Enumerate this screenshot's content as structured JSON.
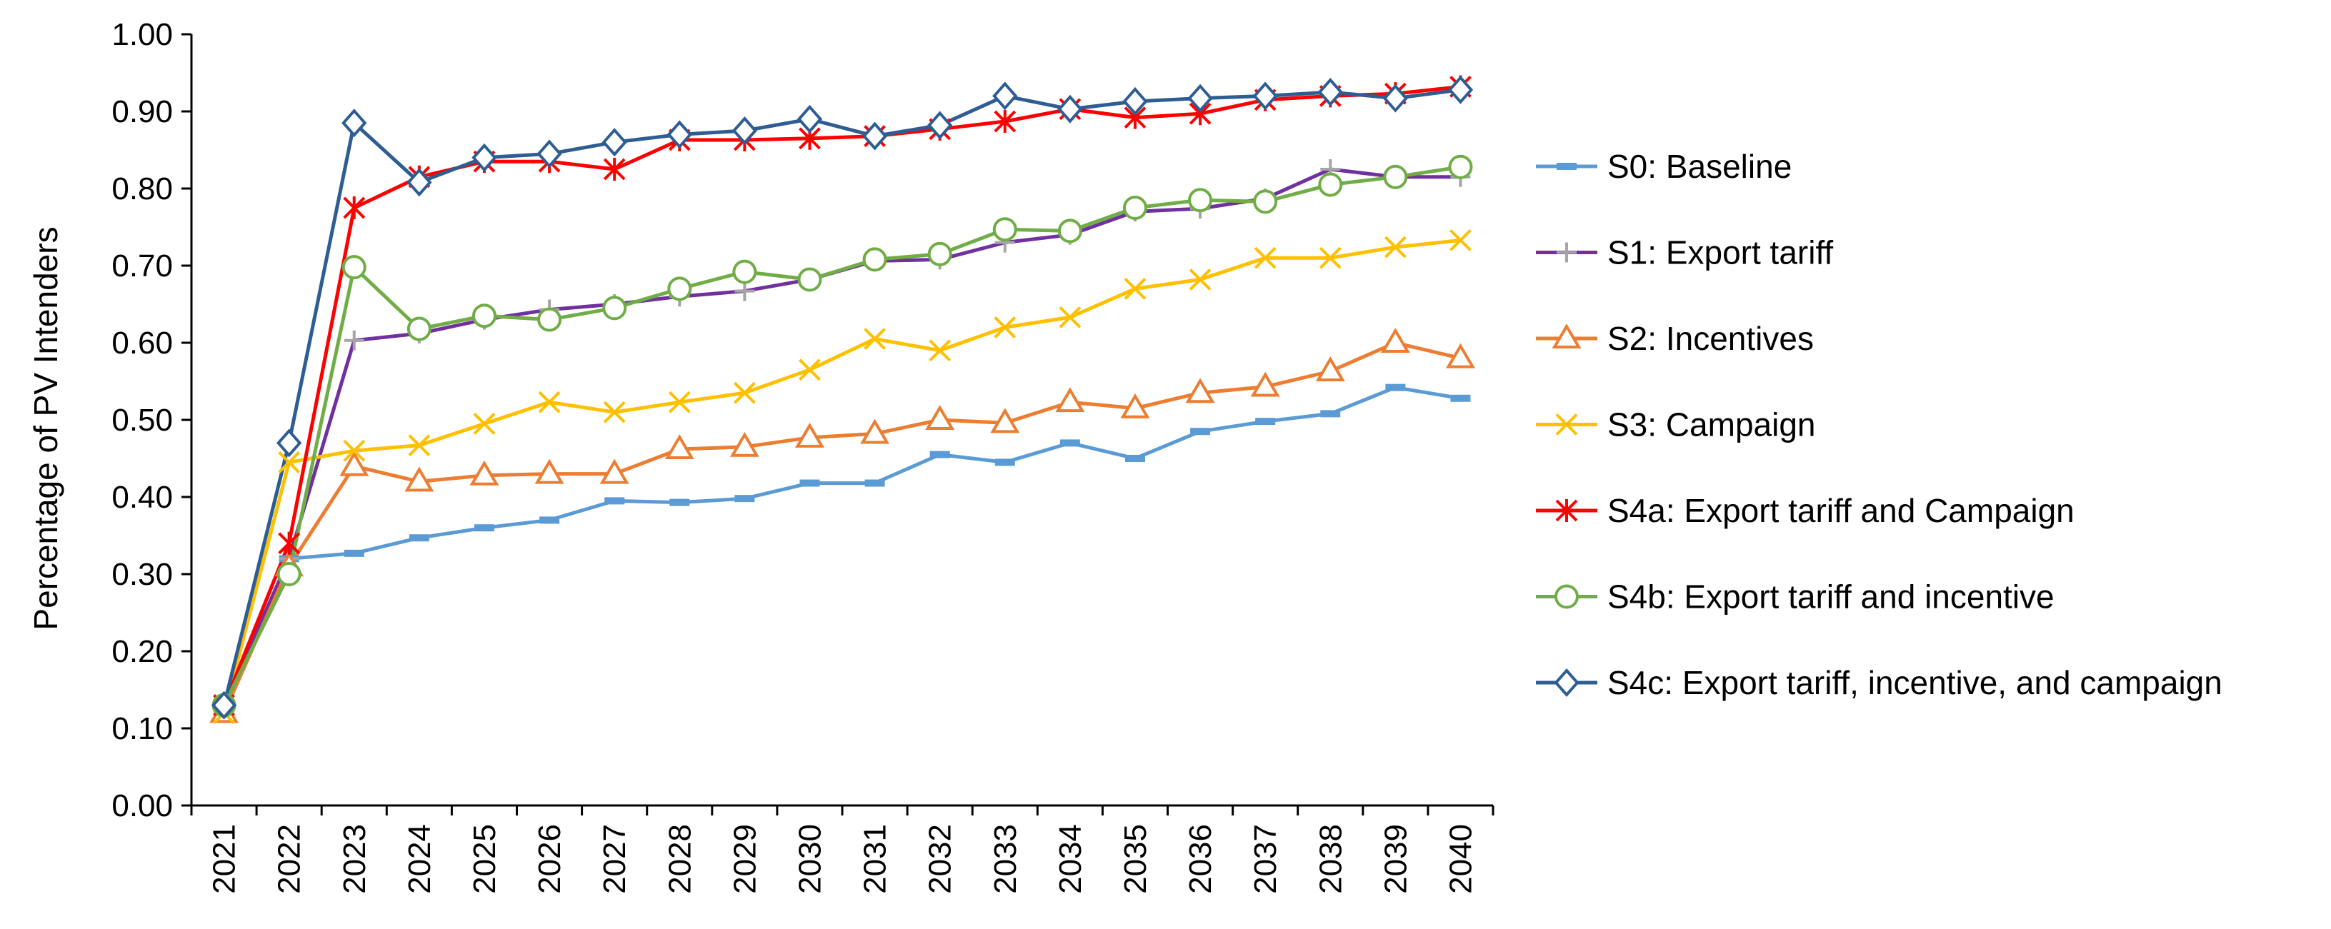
{
  "chart_data": {
    "type": "line",
    "title": "",
    "xlabel": "",
    "ylabel": "Percentage of PV Intenders",
    "ylim": [
      0,
      1
    ],
    "yticks": [
      "0.00",
      "0.10",
      "0.20",
      "0.30",
      "0.40",
      "0.50",
      "0.60",
      "0.70",
      "0.80",
      "0.90",
      "1.00"
    ],
    "grid": false,
    "legend_position": "right",
    "categories": [
      "2021",
      "2022",
      "2023",
      "2024",
      "2025",
      "2026",
      "2027",
      "2028",
      "2029",
      "2030",
      "2031",
      "2032",
      "2033",
      "2034",
      "2035",
      "2036",
      "2037",
      "2038",
      "2039",
      "2040"
    ],
    "series": [
      {
        "name": "S0: Baseline",
        "color": "#5B9BD5",
        "marker": "dash",
        "values": [
          0.13,
          0.32,
          0.327,
          0.347,
          0.36,
          0.37,
          0.395,
          0.393,
          0.398,
          0.418,
          0.418,
          0.455,
          0.445,
          0.47,
          0.45,
          0.485,
          0.498,
          0.508,
          0.542,
          0.528
        ]
      },
      {
        "name": "S1: Export tariff",
        "color": "#7030A0",
        "marker": "plus",
        "marker_color": "#A5A5A5",
        "values": [
          0.13,
          0.32,
          0.603,
          0.612,
          0.63,
          0.643,
          0.65,
          0.66,
          0.667,
          0.682,
          0.706,
          0.708,
          0.73,
          0.74,
          0.77,
          0.774,
          0.787,
          0.825,
          0.815,
          0.815
        ]
      },
      {
        "name": "S2: Incentives",
        "color": "#ED7D31",
        "marker": "triangle",
        "values": [
          0.12,
          0.31,
          0.44,
          0.42,
          0.428,
          0.43,
          0.43,
          0.462,
          0.465,
          0.477,
          0.482,
          0.5,
          0.496,
          0.523,
          0.515,
          0.535,
          0.543,
          0.563,
          0.6,
          0.58
        ]
      },
      {
        "name": "S3: Campaign",
        "color": "#FFC000",
        "marker": "x",
        "values": [
          0.12,
          0.445,
          0.46,
          0.467,
          0.495,
          0.523,
          0.51,
          0.523,
          0.535,
          0.565,
          0.605,
          0.59,
          0.62,
          0.633,
          0.67,
          0.682,
          0.71,
          0.71,
          0.724,
          0.733
        ]
      },
      {
        "name": "S4a: Export tariff and Campaign",
        "color": "#FF0000",
        "marker": "asterisk",
        "values": [
          0.13,
          0.34,
          0.775,
          0.815,
          0.835,
          0.835,
          0.825,
          0.863,
          0.863,
          0.865,
          0.868,
          0.877,
          0.887,
          0.903,
          0.892,
          0.897,
          0.915,
          0.92,
          0.923,
          0.932
        ]
      },
      {
        "name": "S4b: Export tariff and incentive",
        "color": "#70AD47",
        "marker": "circle",
        "values": [
          0.13,
          0.3,
          0.698,
          0.618,
          0.635,
          0.63,
          0.645,
          0.67,
          0.692,
          0.682,
          0.708,
          0.715,
          0.747,
          0.745,
          0.775,
          0.785,
          0.783,
          0.805,
          0.815,
          0.828
        ]
      },
      {
        "name": "S4c: Export tariff, incentive, and campaign",
        "color": "#2E5D94",
        "marker": "diamond",
        "values": [
          0.13,
          0.47,
          0.885,
          0.808,
          0.84,
          0.845,
          0.86,
          0.87,
          0.875,
          0.89,
          0.868,
          0.882,
          0.92,
          0.903,
          0.913,
          0.917,
          0.92,
          0.925,
          0.917,
          0.928
        ]
      }
    ]
  }
}
